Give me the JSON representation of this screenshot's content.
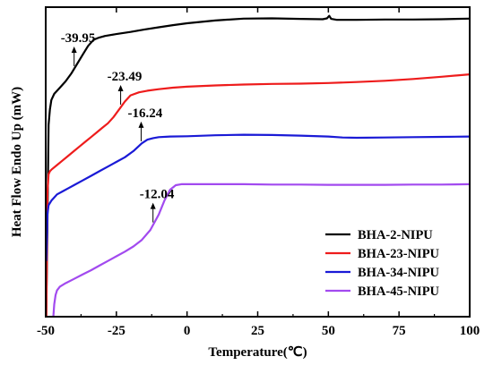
{
  "chart_data": {
    "type": "line",
    "title": "",
    "xlabel": "Temperature(℃)",
    "ylabel": "Heat Flow Endo Up (mW)",
    "xlim": [
      -50,
      100
    ],
    "ylim": [
      0,
      100
    ],
    "y_ticks_shown": false,
    "grid": false,
    "legend_position": "bottom-right",
    "xticks": [
      -50,
      -25,
      0,
      25,
      50,
      75,
      100
    ],
    "xtick_labels": [
      "-50",
      "-25",
      "0",
      "25",
      "50",
      "75",
      "100"
    ],
    "series": [
      {
        "name": "BHA-2-NIPU",
        "color": "#000000",
        "x": [
          -49.8,
          -49.4,
          -49,
          -48.5,
          -48,
          -47,
          -45,
          -43,
          -41,
          -39,
          -37,
          -35,
          -33,
          -31,
          -29,
          -25,
          -20,
          -15,
          -10,
          -5,
          0,
          10,
          20,
          30,
          40,
          48,
          49.5,
          50.3,
          51,
          53,
          60,
          70,
          80,
          90,
          100
        ],
        "y": [
          0,
          30,
          62,
          67,
          70,
          72,
          74,
          76,
          78.5,
          81.5,
          84.5,
          87.5,
          89.5,
          90.2,
          90.7,
          91.3,
          92,
          92.8,
          93.5,
          94.2,
          94.8,
          95.7,
          96.3,
          96.4,
          96.2,
          96.1,
          96.4,
          97.2,
          96.2,
          95.9,
          95.9,
          96,
          96,
          96.1,
          96.3
        ],
        "annotation": {
          "x": -39.95,
          "label": "-39.95"
        }
      },
      {
        "name": "BHA-23-NIPU",
        "color": "#ee1c1c",
        "x": [
          -49.8,
          -49.4,
          -49,
          -48.5,
          -48,
          -46,
          -44,
          -42,
          -40,
          -38,
          -36,
          -34,
          -32,
          -30,
          -28,
          -26,
          -24,
          -22,
          -20,
          -17,
          -14,
          -10,
          -5,
          0,
          10,
          20,
          30,
          40,
          50,
          60,
          70,
          80,
          90,
          100
        ],
        "y": [
          0,
          40,
          46,
          47,
          47.5,
          49,
          50.5,
          52,
          53.5,
          55,
          56.5,
          58,
          59.5,
          61,
          62.5,
          64.5,
          67,
          69.5,
          71.5,
          72.5,
          73,
          73.5,
          74,
          74.3,
          74.7,
          75,
          75.2,
          75.3,
          75.5,
          75.8,
          76.2,
          76.8,
          77.5,
          78.3
        ],
        "annotation": {
          "x": -23.49,
          "label": "-23.49"
        }
      },
      {
        "name": "BHA-34-NIPU",
        "color": "#1a1ad6",
        "x": [
          -49.8,
          -49.4,
          -49,
          -48,
          -47,
          -46,
          -44,
          -42,
          -40,
          -37,
          -34,
          -31,
          -28,
          -25,
          -22,
          -19,
          -16,
          -14,
          -12,
          -10,
          -6,
          0,
          10,
          20,
          30,
          40,
          50,
          55,
          60,
          70,
          80,
          90,
          100
        ],
        "y": [
          18,
          33,
          36,
          37.5,
          38.5,
          39.5,
          40.5,
          41.5,
          42.5,
          44,
          45.5,
          47,
          48.5,
          50,
          51.5,
          53.5,
          56,
          57.2,
          57.7,
          58,
          58.2,
          58.3,
          58.6,
          58.8,
          58.7,
          58.5,
          58.2,
          57.9,
          57.8,
          57.9,
          58,
          58.1,
          58.2
        ],
        "annotation": {
          "x": -16.24,
          "label": "-16.24"
        }
      },
      {
        "name": "BHA-45-NIPU",
        "color": "#a24aef",
        "x": [
          -47.3,
          -47,
          -46.5,
          -46,
          -45,
          -43,
          -40,
          -37,
          -34,
          -31,
          -28,
          -25,
          -22,
          -19,
          -16,
          -13,
          -10,
          -8,
          -6,
          -4,
          -2,
          0,
          10,
          20,
          30,
          40,
          50,
          60,
          70,
          80,
          90,
          100
        ],
        "y": [
          0,
          4,
          7,
          8.5,
          9.7,
          10.8,
          12.2,
          13.6,
          15,
          16.5,
          18,
          19.5,
          21,
          22.7,
          24.8,
          28,
          33,
          37.5,
          41,
          42.5,
          42.8,
          42.8,
          42.8,
          42.8,
          42.7,
          42.7,
          42.6,
          42.6,
          42.6,
          42.7,
          42.7,
          42.8
        ],
        "annotation": {
          "x": -12.04,
          "label": "-12.04"
        }
      }
    ]
  }
}
